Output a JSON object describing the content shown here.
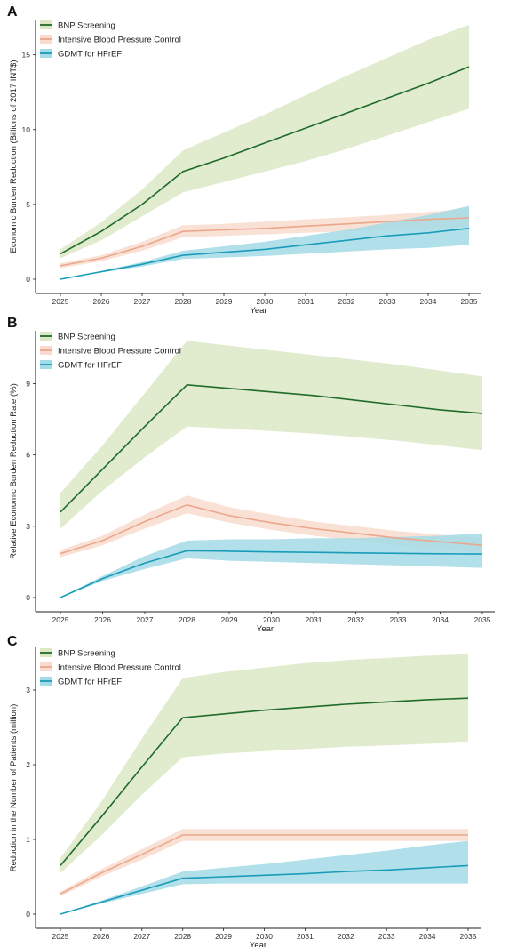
{
  "colors": {
    "bnp_line": "#1e6b2a",
    "bnp_band": "#dce8c4",
    "ibp_line": "#eba78c",
    "ibp_band": "#f9dccf",
    "gdmt_line": "#1a9cb8",
    "gdmt_band": "#a3dbe6"
  },
  "chart_data": [
    {
      "panel": "A",
      "type": "line",
      "xlabel": "Year",
      "ylabel": "Economic Burden Reduction (Billions of 2017 INT$)",
      "x": [
        2025,
        2026,
        2027,
        2028,
        2029,
        2030,
        2031,
        2032,
        2033,
        2034,
        2035
      ],
      "ylim": [
        0,
        17
      ],
      "yticks": [
        0,
        5,
        10,
        15
      ],
      "legend": "top-left",
      "grid": false,
      "series": [
        {
          "name": "BNP Screening",
          "values": [
            1.7,
            3.2,
            5.0,
            7.2,
            8.1,
            9.1,
            10.1,
            11.1,
            12.1,
            13.1,
            14.2
          ],
          "lower": [
            1.4,
            2.6,
            4.2,
            5.8,
            6.5,
            7.2,
            7.9,
            8.7,
            9.6,
            10.5,
            11.4
          ],
          "upper": [
            2.0,
            3.8,
            6.0,
            8.6,
            9.8,
            11.0,
            12.3,
            13.6,
            14.8,
            16.0,
            17.0
          ]
        },
        {
          "name": "Intensive Blood Pressure Control",
          "values": [
            0.9,
            1.4,
            2.2,
            3.2,
            3.3,
            3.4,
            3.55,
            3.7,
            3.85,
            4.0,
            4.1
          ],
          "lower": [
            0.75,
            1.2,
            1.9,
            2.8,
            2.9,
            3.0,
            3.1,
            3.2,
            3.3,
            3.4,
            3.5
          ],
          "upper": [
            1.05,
            1.6,
            2.5,
            3.6,
            3.7,
            3.85,
            4.0,
            4.15,
            4.3,
            4.5,
            4.7
          ]
        },
        {
          "name": "GDMT for HFrEF",
          "values": [
            0.0,
            0.5,
            1.0,
            1.6,
            1.8,
            2.0,
            2.3,
            2.6,
            2.9,
            3.1,
            3.4
          ],
          "lower": [
            0.0,
            0.45,
            0.85,
            1.35,
            1.45,
            1.55,
            1.7,
            1.85,
            2.0,
            2.1,
            2.3
          ],
          "upper": [
            0.0,
            0.55,
            1.15,
            1.9,
            2.2,
            2.5,
            2.9,
            3.3,
            3.8,
            4.3,
            4.9
          ]
        }
      ]
    },
    {
      "panel": "B",
      "type": "line",
      "xlabel": "Year",
      "ylabel": "Relative Economic Burden Reduction Rate (%)",
      "x": [
        2025,
        2026,
        2027,
        2028,
        2029,
        2030,
        2031,
        2032,
        2033,
        2034,
        2035
      ],
      "ylim": [
        0,
        11
      ],
      "yticks": [
        0,
        3,
        6,
        9
      ],
      "legend": "top-left",
      "grid": false,
      "series": [
        {
          "name": "BNP Screening",
          "values": [
            3.6,
            5.4,
            7.2,
            8.95,
            8.8,
            8.65,
            8.5,
            8.3,
            8.1,
            7.9,
            7.75
          ],
          "lower": [
            2.9,
            4.5,
            5.9,
            7.2,
            7.1,
            7.0,
            6.9,
            6.75,
            6.6,
            6.4,
            6.2
          ],
          "upper": [
            4.4,
            6.4,
            8.6,
            10.8,
            10.6,
            10.4,
            10.2,
            10.0,
            9.8,
            9.55,
            9.3
          ]
        },
        {
          "name": "Intensive Blood Pressure Control",
          "values": [
            1.85,
            2.4,
            3.2,
            3.9,
            3.45,
            3.15,
            2.9,
            2.7,
            2.5,
            2.35,
            2.2
          ],
          "lower": [
            1.7,
            2.2,
            2.9,
            3.55,
            3.15,
            2.85,
            2.6,
            2.4,
            2.2,
            2.05,
            1.9
          ],
          "upper": [
            2.0,
            2.6,
            3.5,
            4.3,
            3.8,
            3.5,
            3.2,
            3.0,
            2.8,
            2.65,
            2.5
          ]
        },
        {
          "name": "GDMT for HFrEF",
          "values": [
            0.0,
            0.8,
            1.45,
            1.97,
            1.95,
            1.92,
            1.9,
            1.88,
            1.86,
            1.84,
            1.83
          ],
          "lower": [
            0.0,
            0.7,
            1.2,
            1.65,
            1.55,
            1.5,
            1.45,
            1.4,
            1.35,
            1.3,
            1.25
          ],
          "upper": [
            0.0,
            0.9,
            1.75,
            2.4,
            2.45,
            2.45,
            2.5,
            2.5,
            2.55,
            2.6,
            2.7
          ]
        }
      ]
    },
    {
      "panel": "C",
      "type": "line",
      "xlabel": "Year",
      "ylabel": "Reduction in the Number of Patients (million)",
      "x": [
        2025,
        2026,
        2027,
        2028,
        2029,
        2030,
        2031,
        2032,
        2033,
        2034,
        2035
      ],
      "ylim": [
        0,
        3.5
      ],
      "yticks": [
        0,
        1,
        2,
        3
      ],
      "legend": "top-left",
      "grid": false,
      "series": [
        {
          "name": "BNP Screening",
          "values": [
            0.65,
            1.3,
            1.97,
            2.63,
            2.68,
            2.73,
            2.77,
            2.81,
            2.84,
            2.87,
            2.89
          ],
          "lower": [
            0.55,
            1.05,
            1.6,
            2.1,
            2.15,
            2.18,
            2.21,
            2.24,
            2.26,
            2.28,
            2.3
          ],
          "upper": [
            0.75,
            1.5,
            2.35,
            3.16,
            3.24,
            3.3,
            3.36,
            3.4,
            3.43,
            3.46,
            3.48
          ]
        },
        {
          "name": "Intensive Blood Pressure Control",
          "values": [
            0.27,
            0.55,
            0.8,
            1.06,
            1.06,
            1.06,
            1.06,
            1.06,
            1.06,
            1.06,
            1.06
          ],
          "lower": [
            0.24,
            0.5,
            0.73,
            0.98,
            0.98,
            0.98,
            0.98,
            0.98,
            0.98,
            0.98,
            0.98
          ],
          "upper": [
            0.3,
            0.6,
            0.87,
            1.14,
            1.14,
            1.14,
            1.14,
            1.14,
            1.14,
            1.14,
            1.14
          ]
        },
        {
          "name": "GDMT for HFrEF",
          "values": [
            0.0,
            0.16,
            0.32,
            0.48,
            0.5,
            0.52,
            0.54,
            0.57,
            0.59,
            0.62,
            0.65
          ],
          "lower": [
            0.0,
            0.14,
            0.27,
            0.4,
            0.41,
            0.41,
            0.41,
            0.41,
            0.41,
            0.41,
            0.41
          ],
          "upper": [
            0.0,
            0.18,
            0.37,
            0.57,
            0.62,
            0.67,
            0.73,
            0.79,
            0.85,
            0.92,
            0.98
          ]
        }
      ]
    }
  ]
}
